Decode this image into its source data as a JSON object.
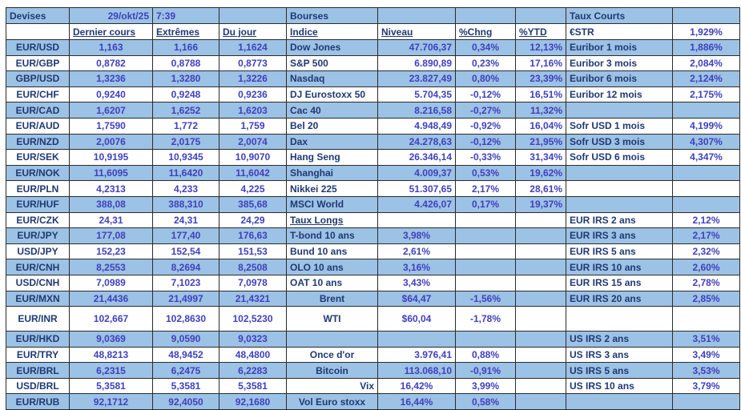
{
  "colors": {
    "row_blue": "#9cc2e5",
    "label_navy": "#203972",
    "value_blue": "#4040be",
    "grid_border": "#2b2b2b",
    "background": "#ffffff"
  },
  "header": {
    "devises": "Devises",
    "date": "29/okt/25",
    "time": "7:39",
    "bourses": "Bourses",
    "taux_courts": "Taux Courts",
    "col_dernier": "Dernier cours",
    "col_extremes": "Extrêmes",
    "col_dujour": "Du jour",
    "col_indice": "Indice",
    "col_niveau": "Niveau",
    "col_chng": "%Chng",
    "col_ytd": "%YTD",
    "estr_label": "€STR",
    "estr_value": "1,929%"
  },
  "rows": [
    {
      "pair": "EUR/USD",
      "dernier": "1,163",
      "extremes": "1,166",
      "dujour": "1,1624",
      "indice": "Dow Jones",
      "niveau": "47.706,37",
      "chng": "0,34%",
      "ytd": "12,13%",
      "taux_label": "Euribor 1 mois",
      "taux_value": "1,886%"
    },
    {
      "pair": "EUR/GBP",
      "dernier": "0,8782",
      "extremes": "0,8788",
      "dujour": "0,8773",
      "indice": "S&P 500",
      "niveau": "6.890,89",
      "chng": "0,23%",
      "ytd": "17,16%",
      "taux_label": "Euribor 3 mois",
      "taux_value": "2,084%"
    },
    {
      "pair": "GBP/USD",
      "dernier": "1,3236",
      "extremes": "1,3280",
      "dujour": "1,3226",
      "indice": "Nasdaq",
      "niveau": "23.827,49",
      "chng": "0,80%",
      "ytd": "23,39%",
      "taux_label": "Euribor 6 mois",
      "taux_value": "2,124%"
    },
    {
      "pair": "EUR/CHF",
      "dernier": "0,9240",
      "extremes": "0,9248",
      "dujour": "0,9236",
      "indice": "DJ Eurostoxx 50",
      "niveau": "5.704,35",
      "chng": "-0,12%",
      "ytd": "16,51%",
      "taux_label": "Euribor 12 mois",
      "taux_value": "2,175%"
    },
    {
      "pair": "EUR/CAD",
      "dernier": "1,6207",
      "extremes": "1,6252",
      "dujour": "1,6203",
      "indice": "Cac 40",
      "niveau": "8.216,58",
      "chng": "-0,27%",
      "ytd": "11,32%",
      "taux_label": "",
      "taux_value": ""
    },
    {
      "pair": "EUR/AUD",
      "dernier": "1,7590",
      "extremes": "1,772",
      "dujour": "1,759",
      "indice": "Bel 20",
      "niveau": "4.948,49",
      "chng": "-0,92%",
      "ytd": "16,04%",
      "taux_label": "Sofr USD 1 mois",
      "taux_value": "4,199%"
    },
    {
      "pair": "EUR/NZD",
      "dernier": "2,0076",
      "extremes": "2,0175",
      "dujour": "2,0074",
      "indice": "Dax",
      "niveau": "24.278,63",
      "chng": "-0,12%",
      "ytd": "21,95%",
      "taux_label": "Sofr USD 3 mois",
      "taux_value": "4,307%"
    },
    {
      "pair": "EUR/SEK",
      "dernier": "10,9195",
      "extremes": "10,9345",
      "dujour": "10,9070",
      "indice": "Hang Seng",
      "niveau": "26.346,14",
      "chng": "-0,33%",
      "ytd": "31,34%",
      "taux_label": "Sofr USD 6 mois",
      "taux_value": "4,347%"
    },
    {
      "pair": "EUR/NOK",
      "dernier": "11,6095",
      "extremes": "11,6420",
      "dujour": "11,6042",
      "indice": "Shanghai",
      "niveau": "4.009,37",
      "chng": "0,53%",
      "ytd": "19,62%",
      "taux_label": "",
      "taux_value": ""
    },
    {
      "pair": "EUR/PLN",
      "dernier": "4,2313",
      "extremes": "4,233",
      "dujour": "4,225",
      "indice": "Nikkei 225",
      "niveau": "51.307,65",
      "chng": "2,17%",
      "ytd": "28,61%",
      "taux_label": "",
      "taux_value": ""
    },
    {
      "pair": "EUR/HUF",
      "dernier": "388,08",
      "extremes": "388,310",
      "dujour": "385,68",
      "indice": "MSCI World",
      "niveau": "4.426,07",
      "chng": "0,17%",
      "ytd": "19,37%",
      "taux_label": "",
      "taux_value": ""
    },
    {
      "pair": "EUR/CZK",
      "dernier": "24,31",
      "extremes": "24,31",
      "dujour": "24,29",
      "indice": "Taux Longs",
      "indice_underline": true,
      "niveau": "",
      "chng": "",
      "ytd": "",
      "taux_label": "EUR IRS 2 ans",
      "taux_value": "2,12%"
    },
    {
      "pair": "EUR/JPY",
      "dernier": "177,08",
      "extremes": "177,40",
      "dujour": "176,63",
      "indice": "T-bond 10 ans",
      "niveau": "3,98%",
      "niveau_align": "center",
      "chng": "",
      "ytd": "",
      "taux_label": "EUR IRS 3 ans",
      "taux_value": "2,17%"
    },
    {
      "pair": "USD/JPY",
      "dernier": "152,23",
      "extremes": "152,54",
      "dujour": "151,53",
      "indice": "Bund 10 ans",
      "niveau": "2,61%",
      "niveau_align": "center",
      "chng": "",
      "ytd": "",
      "taux_label": "EUR IRS 5 ans",
      "taux_value": "2,32%"
    },
    {
      "pair": "EUR/CNH",
      "dernier": "8,2553",
      "extremes": "8,2694",
      "dujour": "8,2508",
      "indice": "OLO 10 ans",
      "niveau": "3,16%",
      "niveau_align": "center",
      "chng": "",
      "ytd": "",
      "taux_label": "EUR IRS 10 ans",
      "taux_value": "2,60%"
    },
    {
      "pair": "USD/CNH",
      "dernier": "7,0989",
      "extremes": "7,1023",
      "dujour": "7,0978",
      "indice": "OAT 10 ans",
      "niveau": "3,43%",
      "niveau_align": "center",
      "chng": "",
      "ytd": "",
      "taux_label": "EUR IRS 15 ans",
      "taux_value": "2,78%"
    },
    {
      "pair": "EUR/MXN",
      "dernier": "21,4436",
      "extremes": "21,4997",
      "dujour": "21,4321",
      "indice": "Brent",
      "indice_align": "center",
      "niveau": "$64,47",
      "niveau_align": "center",
      "chng": "-1,56%",
      "ytd": "",
      "taux_label": "EUR IRS 20 ans",
      "taux_value": "2,85%"
    },
    {
      "pair": "EUR/INR",
      "dernier": "102,667",
      "extremes": "102,8630",
      "dujour": "102,5230",
      "indice": "WTI",
      "indice_align": "center",
      "niveau": "$60,04",
      "niveau_align": "center",
      "chng": "-1,78%",
      "ytd": "",
      "taux_label": "",
      "taux_value": "",
      "tall": true
    },
    {
      "pair": "EUR/HKD",
      "dernier": "9,0369",
      "extremes": "9,0590",
      "dujour": "9,0323",
      "indice": "",
      "niveau": "",
      "chng": "",
      "ytd": "",
      "taux_label": "US IRS 2 ans",
      "taux_value": "3,51%"
    },
    {
      "pair": "EUR/TRY",
      "dernier": "48,8213",
      "extremes": "48,9452",
      "dujour": "48,4800",
      "indice": "Once d'or",
      "indice_align": "center",
      "niveau": "3.976,41",
      "chng": "0,88%",
      "ytd": "",
      "taux_label": "US IRS 3 ans",
      "taux_value": "3,49%"
    },
    {
      "pair": "EUR/BRL",
      "dernier": "6,2315",
      "extremes": "6,2475",
      "dujour": "6,2283",
      "indice": "Bitcoin",
      "indice_align": "center",
      "niveau": "113.068,10",
      "chng": "-0,91%",
      "ytd": "",
      "taux_label": "US IRS 5 ans",
      "taux_value": "3,53%"
    },
    {
      "pair": "USD/BRL",
      "dernier": "5,3581",
      "extremes": "5,3581",
      "dujour": "5,3581",
      "indice": "Vix",
      "indice_align": "right",
      "niveau": "16,42%",
      "niveau_align": "center",
      "chng": "3,99%",
      "ytd": "",
      "taux_label": "US IRS 10 ans",
      "taux_value": "3,79%"
    },
    {
      "pair": "EUR/RUB",
      "dernier": "92,1712",
      "extremes": "92,4050",
      "dujour": "92,1680",
      "indice": "Vol Euro stoxx",
      "indice_align": "center",
      "niveau": "16,44%",
      "niveau_align": "center",
      "chng": "0,58%",
      "ytd": "",
      "taux_label": "",
      "taux_value": ""
    }
  ]
}
